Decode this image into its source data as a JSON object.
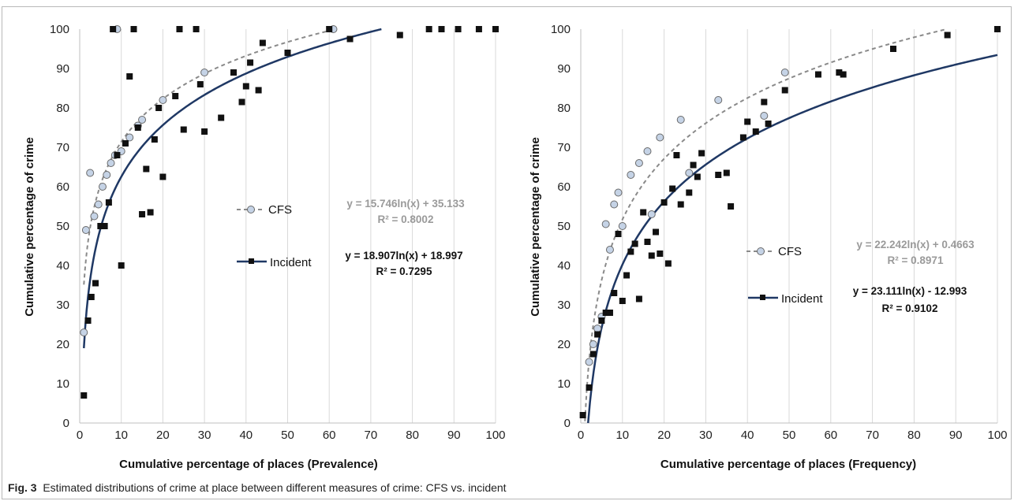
{
  "caption": {
    "label": "Fig. 3",
    "text": "Estimated distributions of crime at place between different measures of crime: CFS vs. incident"
  },
  "colors": {
    "cfs": "#8a8a8a",
    "cfs_fill": "#c5d3e6",
    "incident": "#111111",
    "incident_trend": "#1f3864"
  },
  "chart_data": [
    {
      "type": "scatter",
      "xlabel": "Cumulative percentage of places (Prevalence)",
      "ylabel": "Cumulative percentage of crime",
      "xlim": [
        0,
        100
      ],
      "ylim": [
        0,
        100
      ],
      "xticks": [
        0,
        10,
        20,
        30,
        40,
        50,
        60,
        70,
        80,
        90,
        100
      ],
      "yticks": [
        0,
        10,
        20,
        30,
        40,
        50,
        60,
        70,
        80,
        90,
        100
      ],
      "grid": "vertical",
      "series": [
        {
          "name": "CFS",
          "marker": "circle",
          "trend": "dashed",
          "trend_eq": {
            "a": 15.746,
            "b": 35.133
          },
          "equation": "y = 15.746ln(x) + 35.133",
          "r2": "R² = 0.8002",
          "points": [
            [
              1,
              23
            ],
            [
              1.5,
              49
            ],
            [
              2.5,
              63.5
            ],
            [
              3.5,
              52.5
            ],
            [
              4.5,
              55.5
            ],
            [
              5.5,
              60
            ],
            [
              6.5,
              63
            ],
            [
              7.5,
              66
            ],
            [
              8.5,
              68
            ],
            [
              9,
              100
            ],
            [
              10,
              69
            ],
            [
              12,
              72.5
            ],
            [
              14,
              75.5
            ],
            [
              15,
              77
            ],
            [
              20,
              82
            ],
            [
              30,
              89
            ],
            [
              61,
              100
            ]
          ]
        },
        {
          "name": "Incident",
          "marker": "square",
          "trend": "solid",
          "trend_eq": {
            "a": 18.907,
            "b": 18.997
          },
          "equation": "y = 18.907ln(x) + 18.997",
          "r2": "R² = 0.7295",
          "points": [
            [
              1,
              7
            ],
            [
              2,
              26
            ],
            [
              2.8,
              32
            ],
            [
              3.8,
              35.5
            ],
            [
              5,
              50
            ],
            [
              6,
              50
            ],
            [
              7,
              56
            ],
            [
              8,
              100
            ],
            [
              9,
              68
            ],
            [
              10,
              40
            ],
            [
              11,
              71
            ],
            [
              12,
              88
            ],
            [
              13,
              100
            ],
            [
              14,
              75
            ],
            [
              15,
              53
            ],
            [
              16,
              64.5
            ],
            [
              17,
              53.5
            ],
            [
              18,
              72
            ],
            [
              19,
              80
            ],
            [
              20,
              62.5
            ],
            [
              23,
              83
            ],
            [
              24,
              100
            ],
            [
              25,
              74.5
            ],
            [
              28,
              100
            ],
            [
              29,
              86
            ],
            [
              30,
              74
            ],
            [
              34,
              77.5
            ],
            [
              37,
              89
            ],
            [
              39,
              81.5
            ],
            [
              40,
              85.5
            ],
            [
              41,
              91.5
            ],
            [
              43,
              84.5
            ],
            [
              44,
              96.5
            ],
            [
              50,
              94
            ],
            [
              60,
              100
            ],
            [
              65,
              97.5
            ],
            [
              77,
              98.5
            ],
            [
              84,
              100
            ],
            [
              87,
              100
            ],
            [
              91,
              100
            ],
            [
              96,
              100
            ],
            [
              100,
              100
            ]
          ]
        }
      ]
    },
    {
      "type": "scatter",
      "xlabel": "Cumulative percentage of places (Frequency)",
      "ylabel": "Cumulative percentage of crime",
      "xlim": [
        0,
        100
      ],
      "ylim": [
        0,
        100
      ],
      "xticks": [
        0,
        10,
        20,
        30,
        40,
        50,
        60,
        70,
        80,
        90,
        100
      ],
      "yticks": [
        0,
        10,
        20,
        30,
        40,
        50,
        60,
        70,
        80,
        90,
        100
      ],
      "grid": "vertical",
      "series": [
        {
          "name": "CFS",
          "marker": "circle",
          "trend": "dashed",
          "trend_eq": {
            "a": 22.242,
            "b": 0.4663
          },
          "equation": "y = 22.242ln(x) + 0.4663",
          "r2": "R² = 0.8971",
          "points": [
            [
              2,
              15.5
            ],
            [
              3,
              20
            ],
            [
              4,
              24
            ],
            [
              5,
              27
            ],
            [
              6,
              50.5
            ],
            [
              7,
              44
            ],
            [
              8,
              55.5
            ],
            [
              9,
              58.5
            ],
            [
              10,
              50
            ],
            [
              12,
              63
            ],
            [
              14,
              66
            ],
            [
              16,
              69
            ],
            [
              17,
              53
            ],
            [
              19,
              72.5
            ],
            [
              24,
              77
            ],
            [
              26,
              63.5
            ],
            [
              33,
              82
            ],
            [
              44,
              78
            ],
            [
              49,
              89
            ]
          ]
        },
        {
          "name": "Incident",
          "marker": "square",
          "trend": "solid",
          "trend_eq": {
            "a": 23.111,
            "b": -12.993
          },
          "equation": "y = 23.111ln(x) - 12.993",
          "r2": "R² = 0.9102",
          "points": [
            [
              0.5,
              2
            ],
            [
              2,
              9
            ],
            [
              3,
              17.5
            ],
            [
              4,
              22.5
            ],
            [
              5,
              26
            ],
            [
              6,
              28
            ],
            [
              7,
              28
            ],
            [
              8,
              33
            ],
            [
              9,
              48
            ],
            [
              10,
              31
            ],
            [
              11,
              37.5
            ],
            [
              12,
              43.5
            ],
            [
              13,
              45.5
            ],
            [
              14,
              31.5
            ],
            [
              15,
              53.5
            ],
            [
              16,
              46
            ],
            [
              17,
              42.5
            ],
            [
              18,
              48.5
            ],
            [
              19,
              43
            ],
            [
              20,
              56
            ],
            [
              21,
              40.5
            ],
            [
              22,
              59.5
            ],
            [
              23,
              68
            ],
            [
              24,
              55.5
            ],
            [
              26,
              58.5
            ],
            [
              27,
              65.5
            ],
            [
              28,
              62.5
            ],
            [
              29,
              68.5
            ],
            [
              33,
              63
            ],
            [
              35,
              63.5
            ],
            [
              36,
              55
            ],
            [
              39,
              72.5
            ],
            [
              40,
              76.5
            ],
            [
              42,
              74
            ],
            [
              44,
              81.5
            ],
            [
              45,
              76
            ],
            [
              49,
              84.5
            ],
            [
              57,
              88.5
            ],
            [
              62,
              89
            ],
            [
              63,
              88.5
            ],
            [
              75,
              95
            ],
            [
              88,
              98.5
            ],
            [
              100,
              100
            ]
          ]
        }
      ]
    }
  ]
}
